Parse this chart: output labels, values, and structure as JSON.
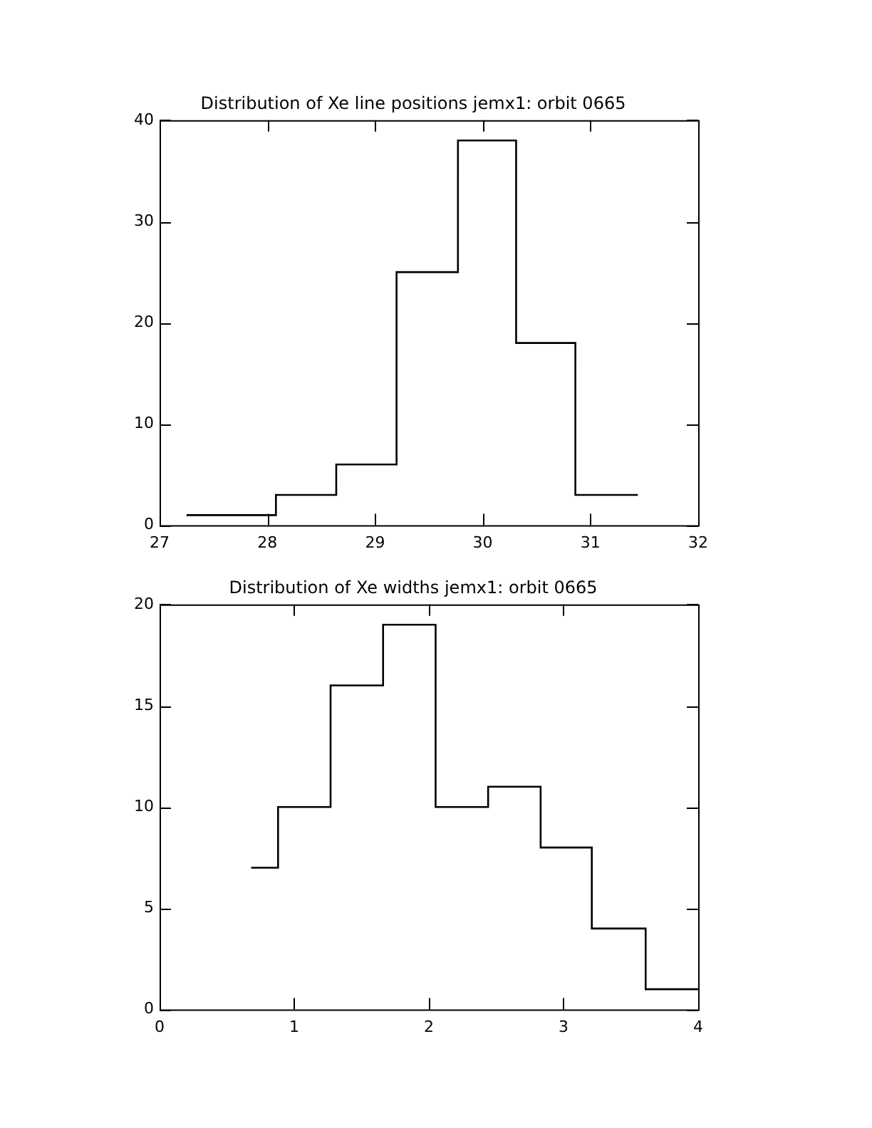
{
  "chart_data": [
    {
      "type": "histogram",
      "title": "Distribution of Xe line positions jemx1: orbit 0665",
      "bins": [
        27.25,
        28.08,
        28.64,
        29.2,
        29.77,
        30.31,
        30.86,
        31.44
      ],
      "values": [
        1,
        3,
        6,
        25,
        38,
        18,
        3
      ],
      "color": "#000000",
      "xlim": [
        27,
        32
      ],
      "xticks": [
        27,
        28,
        29,
        30,
        31,
        32
      ],
      "ylim": [
        0,
        40
      ],
      "yticks": [
        0,
        10,
        20,
        30,
        40
      ],
      "legend": false
    },
    {
      "type": "histogram",
      "title": "Distribution of Xe widths jemx1: orbit 0665",
      "bins": [
        0.68,
        0.88,
        1.27,
        1.66,
        2.05,
        2.44,
        2.83,
        3.21,
        3.61,
        4.0
      ],
      "values": [
        7,
        10,
        16,
        19,
        10,
        11,
        8,
        4,
        1
      ],
      "color": "#000000",
      "xlim": [
        0,
        4
      ],
      "xticks": [
        0,
        1,
        2,
        3,
        4
      ],
      "ylim": [
        0,
        20
      ],
      "yticks": [
        0,
        5,
        10,
        15,
        20
      ],
      "legend": false
    }
  ]
}
